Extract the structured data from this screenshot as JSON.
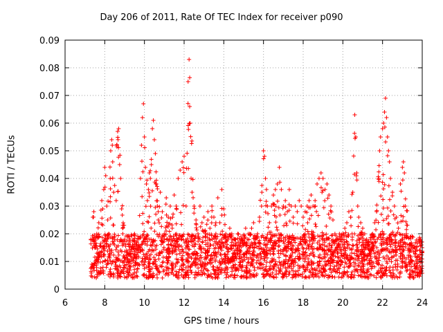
{
  "chart_data": {
    "type": "scatter",
    "title": "Day 206 of 2011, Rate Of TEC Index for receiver p090",
    "xlabel": "GPS time / hours",
    "ylabel": "ROTI / TECUs",
    "xlim": [
      6,
      24
    ],
    "ylim": [
      0,
      0.09
    ],
    "xticks": [
      6,
      8,
      10,
      12,
      14,
      16,
      18,
      20,
      22,
      24
    ],
    "yticks": [
      0,
      0.01,
      0.02,
      0.03,
      0.04,
      0.05,
      0.06,
      0.07,
      0.08,
      0.09
    ],
    "ytick_labels": [
      "0",
      "0.01",
      "0.02",
      "0.03",
      "0.04",
      "0.05",
      "0.06",
      "0.07",
      "0.08",
      "0.09"
    ],
    "grid": true,
    "marker": "+",
    "color": "#ff0000",
    "series": [
      {
        "name": "ROTI",
        "points": [
          [
            7.3,
            0.018
          ],
          [
            7.35,
            0.009
          ],
          [
            7.4,
            0.026
          ],
          [
            7.45,
            0.028
          ],
          [
            7.5,
            0.015
          ],
          [
            7.55,
            0.01
          ],
          [
            7.6,
            0.02
          ],
          [
            7.7,
            0.024
          ],
          [
            7.75,
            0.012
          ],
          [
            7.8,
            0.006
          ],
          [
            7.85,
            0.032
          ],
          [
            7.9,
            0.029
          ],
          [
            7.95,
            0.036
          ],
          [
            8.0,
            0.044
          ],
          [
            8.05,
            0.041
          ],
          [
            8.1,
            0.03
          ],
          [
            8.15,
            0.025
          ],
          [
            8.2,
            0.02
          ],
          [
            8.25,
            0.012
          ],
          [
            8.3,
            0.05
          ],
          [
            8.35,
            0.054
          ],
          [
            8.38,
            0.052
          ],
          [
            8.4,
            0.046
          ],
          [
            8.45,
            0.035
          ],
          [
            8.5,
            0.016
          ],
          [
            8.55,
            0.01
          ],
          [
            8.6,
            0.052
          ],
          [
            8.65,
            0.057
          ],
          [
            8.7,
            0.058
          ],
          [
            8.75,
            0.045
          ],
          [
            8.8,
            0.04
          ],
          [
            8.85,
            0.029
          ],
          [
            8.9,
            0.022
          ],
          [
            8.95,
            0.012
          ],
          [
            9.0,
            0.018
          ],
          [
            9.1,
            0.014
          ],
          [
            9.2,
            0.01
          ],
          [
            9.3,
            0.008
          ],
          [
            9.4,
            0.016
          ],
          [
            9.5,
            0.02
          ],
          [
            9.6,
            0.011
          ],
          [
            9.7,
            0.009
          ],
          [
            9.8,
            0.04
          ],
          [
            9.85,
            0.052
          ],
          [
            9.9,
            0.062
          ],
          [
            9.95,
            0.067
          ],
          [
            10.0,
            0.055
          ],
          [
            10.05,
            0.044
          ],
          [
            10.1,
            0.038
          ],
          [
            10.15,
            0.032
          ],
          [
            10.2,
            0.036
          ],
          [
            10.25,
            0.042
          ],
          [
            10.3,
            0.04
          ],
          [
            10.35,
            0.045
          ],
          [
            10.4,
            0.058
          ],
          [
            10.45,
            0.061
          ],
          [
            10.5,
            0.054
          ],
          [
            10.55,
            0.049
          ],
          [
            10.6,
            0.038
          ],
          [
            10.65,
            0.03
          ],
          [
            10.7,
            0.025
          ],
          [
            10.8,
            0.035
          ],
          [
            10.9,
            0.028
          ],
          [
            11.0,
            0.02
          ],
          [
            11.1,
            0.033
          ],
          [
            11.2,
            0.026
          ],
          [
            11.3,
            0.03
          ],
          [
            11.4,
            0.022
          ],
          [
            11.5,
            0.034
          ],
          [
            11.6,
            0.03
          ],
          [
            11.7,
            0.04
          ],
          [
            11.8,
            0.043
          ],
          [
            11.9,
            0.046
          ],
          [
            12.0,
            0.048
          ],
          [
            12.1,
            0.03
          ],
          [
            12.2,
            0.075
          ],
          [
            12.25,
            0.083
          ],
          [
            12.28,
            0.066
          ],
          [
            12.3,
            0.06
          ],
          [
            12.35,
            0.04
          ],
          [
            12.4,
            0.035
          ],
          [
            12.5,
            0.03
          ],
          [
            12.6,
            0.025
          ],
          [
            12.7,
            0.02
          ],
          [
            12.8,
            0.03
          ],
          [
            12.9,
            0.024
          ],
          [
            13.0,
            0.026
          ],
          [
            13.1,
            0.02
          ],
          [
            13.2,
            0.028
          ],
          [
            13.3,
            0.022
          ],
          [
            13.4,
            0.03
          ],
          [
            13.5,
            0.026
          ],
          [
            13.6,
            0.02
          ],
          [
            13.7,
            0.033
          ],
          [
            13.8,
            0.024
          ],
          [
            13.9,
            0.036
          ],
          [
            14.0,
            0.029
          ],
          [
            14.1,
            0.02
          ],
          [
            14.2,
            0.018
          ],
          [
            14.3,
            0.022
          ],
          [
            14.4,
            0.02
          ],
          [
            14.5,
            0.016
          ],
          [
            14.6,
            0.018
          ],
          [
            14.7,
            0.02
          ],
          [
            14.8,
            0.014
          ],
          [
            14.9,
            0.018
          ],
          [
            15.0,
            0.016
          ],
          [
            15.1,
            0.022
          ],
          [
            15.2,
            0.018
          ],
          [
            15.3,
            0.02
          ],
          [
            15.4,
            0.022
          ],
          [
            15.5,
            0.024
          ],
          [
            15.6,
            0.018
          ],
          [
            15.7,
            0.02
          ],
          [
            15.8,
            0.026
          ],
          [
            15.9,
            0.03
          ],
          [
            16.0,
            0.05
          ],
          [
            16.05,
            0.048
          ],
          [
            16.1,
            0.04
          ],
          [
            16.15,
            0.036
          ],
          [
            16.2,
            0.03
          ],
          [
            16.3,
            0.024
          ],
          [
            16.4,
            0.03
          ],
          [
            16.5,
            0.034
          ],
          [
            16.6,
            0.036
          ],
          [
            16.7,
            0.038
          ],
          [
            16.8,
            0.044
          ],
          [
            16.9,
            0.036
          ],
          [
            17.0,
            0.03
          ],
          [
            17.1,
            0.032
          ],
          [
            17.2,
            0.028
          ],
          [
            17.3,
            0.036
          ],
          [
            17.4,
            0.03
          ],
          [
            17.5,
            0.026
          ],
          [
            17.6,
            0.03
          ],
          [
            17.7,
            0.028
          ],
          [
            17.8,
            0.032
          ],
          [
            17.9,
            0.03
          ],
          [
            18.0,
            0.026
          ],
          [
            18.1,
            0.028
          ],
          [
            18.2,
            0.03
          ],
          [
            18.3,
            0.032
          ],
          [
            18.4,
            0.034
          ],
          [
            18.5,
            0.03
          ],
          [
            18.6,
            0.032
          ],
          [
            18.7,
            0.038
          ],
          [
            18.8,
            0.04
          ],
          [
            18.9,
            0.042
          ],
          [
            19.0,
            0.04
          ],
          [
            19.1,
            0.036
          ],
          [
            19.2,
            0.038
          ],
          [
            19.3,
            0.034
          ],
          [
            19.4,
            0.03
          ],
          [
            19.5,
            0.025
          ],
          [
            19.6,
            0.02
          ],
          [
            19.7,
            0.018
          ],
          [
            19.8,
            0.016
          ],
          [
            19.9,
            0.018
          ],
          [
            20.0,
            0.02
          ],
          [
            20.1,
            0.022
          ],
          [
            20.2,
            0.024
          ],
          [
            20.3,
            0.028
          ],
          [
            20.4,
            0.026
          ],
          [
            20.5,
            0.035
          ],
          [
            20.6,
            0.063
          ],
          [
            20.65,
            0.055
          ],
          [
            20.7,
            0.042
          ],
          [
            20.75,
            0.03
          ],
          [
            20.8,
            0.026
          ],
          [
            20.9,
            0.024
          ],
          [
            21.0,
            0.022
          ],
          [
            21.1,
            0.02
          ],
          [
            21.2,
            0.018
          ],
          [
            21.3,
            0.016
          ],
          [
            21.4,
            0.018
          ],
          [
            21.5,
            0.02
          ],
          [
            21.6,
            0.024
          ],
          [
            21.7,
            0.028
          ],
          [
            21.8,
            0.04
          ],
          [
            21.85,
            0.05
          ],
          [
            21.9,
            0.055
          ],
          [
            22.0,
            0.058
          ],
          [
            22.05,
            0.06
          ],
          [
            22.1,
            0.064
          ],
          [
            22.15,
            0.069
          ],
          [
            22.2,
            0.062
          ],
          [
            22.25,
            0.055
          ],
          [
            22.3,
            0.05
          ],
          [
            22.35,
            0.046
          ],
          [
            22.4,
            0.04
          ],
          [
            22.5,
            0.035
          ],
          [
            22.6,
            0.03
          ],
          [
            22.7,
            0.026
          ],
          [
            22.8,
            0.022
          ],
          [
            22.9,
            0.038
          ],
          [
            23.0,
            0.044
          ],
          [
            23.05,
            0.046
          ],
          [
            23.1,
            0.042
          ],
          [
            23.15,
            0.03
          ],
          [
            23.2,
            0.02
          ],
          [
            23.3,
            0.014
          ],
          [
            23.4,
            0.012
          ],
          [
            23.5,
            0.01
          ],
          [
            23.6,
            0.009
          ],
          [
            23.7,
            0.008
          ],
          [
            23.8,
            0.012
          ],
          [
            23.9,
            0.014
          ],
          [
            24.0,
            0.015
          ]
        ]
      }
    ],
    "background_band": {
      "description_free": true,
      "x_range": [
        7.3,
        24.0
      ],
      "baseline": 0.012,
      "spread": 0.012
    }
  }
}
